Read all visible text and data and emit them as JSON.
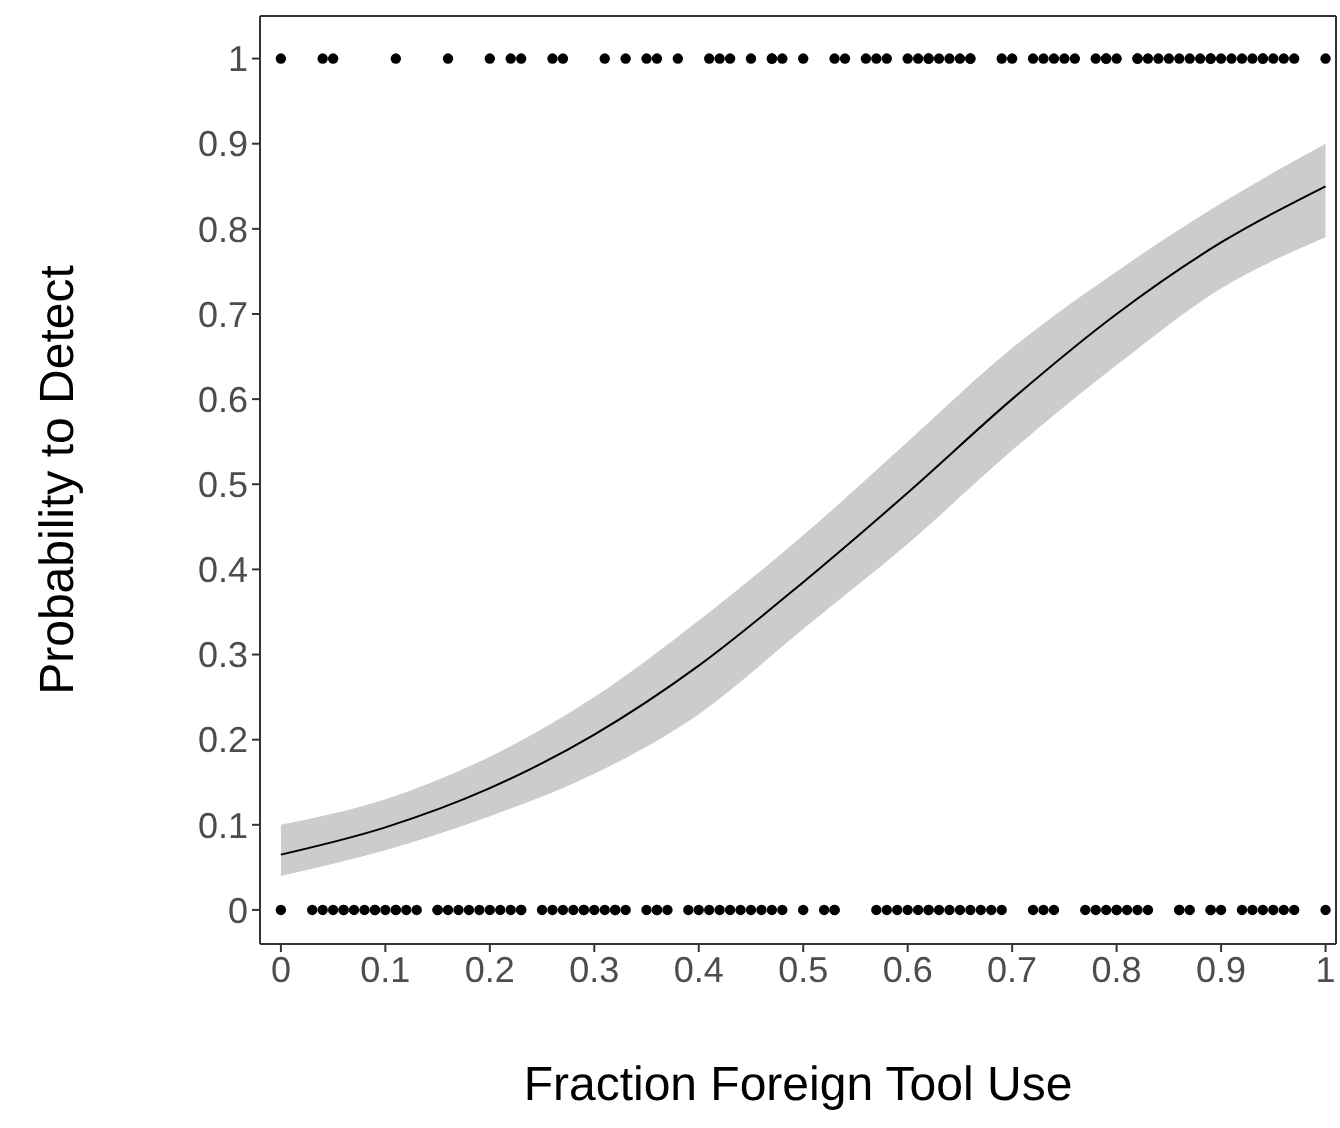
{
  "chart_data": {
    "type": "scatter",
    "xlabel": "Fraction Foreign Tool Use",
    "ylabel": "Probability to Detect",
    "xlim": [
      -0.02,
      1.01
    ],
    "ylim": [
      -0.04,
      1.05
    ],
    "xticks": [
      0,
      0.1,
      0.2,
      0.3,
      0.4,
      0.5,
      0.6,
      0.7,
      0.8,
      0.9,
      1
    ],
    "yticks": [
      0,
      0.1,
      0.2,
      0.3,
      0.4,
      0.5,
      0.6,
      0.7,
      0.8,
      0.9,
      1
    ],
    "grid": false,
    "legend": false,
    "series": [
      {
        "type": "scatter",
        "marker": "circle",
        "color": "#000000",
        "x": [
          0,
          0.04,
          0.05,
          0.11,
          0.16,
          0.2,
          0.22,
          0.23,
          0.26,
          0.27,
          0.31,
          0.33,
          0.35,
          0.36,
          0.38,
          0.41,
          0.42,
          0.43,
          0.45,
          0.47,
          0.47,
          0.48,
          0.5,
          0.53,
          0.54,
          0.56,
          0.57,
          0.58,
          0.6,
          0.61,
          0.62,
          0.62,
          0.63,
          0.64,
          0.65,
          0.66,
          0.66,
          0.69,
          0.7,
          0.72,
          0.73,
          0.74,
          0.75,
          0.76,
          0.78,
          0.79,
          0.79,
          0.8,
          0.82,
          0.82,
          0.83,
          0.84,
          0.85,
          0.86,
          0.87,
          0.88,
          0.89,
          0.89,
          0.9,
          0.91,
          0.92,
          0.93,
          0.94,
          0.94,
          0.95,
          0.96,
          0.97,
          1
        ],
        "values": [
          1,
          1,
          1,
          1,
          1,
          1,
          1,
          1,
          1,
          1,
          1,
          1,
          1,
          1,
          1,
          1,
          1,
          1,
          1,
          1,
          1,
          1,
          1,
          1,
          1,
          1,
          1,
          1,
          1,
          1,
          1,
          1,
          1,
          1,
          1,
          1,
          1,
          1,
          1,
          1,
          1,
          1,
          1,
          1,
          1,
          1,
          1,
          1,
          1,
          1,
          1,
          1,
          1,
          1,
          1,
          1,
          1,
          1,
          1,
          1,
          1,
          1,
          1,
          1,
          1,
          1,
          1,
          1
        ]
      },
      {
        "type": "scatter",
        "marker": "circle",
        "color": "#000000",
        "x": [
          0,
          0.03,
          0.04,
          0.05,
          0.06,
          0.06,
          0.07,
          0.08,
          0.09,
          0.09,
          0.1,
          0.11,
          0.11,
          0.12,
          0.13,
          0.15,
          0.15,
          0.16,
          0.17,
          0.18,
          0.19,
          0.2,
          0.21,
          0.22,
          0.23,
          0.23,
          0.25,
          0.26,
          0.27,
          0.28,
          0.29,
          0.29,
          0.3,
          0.31,
          0.32,
          0.32,
          0.33,
          0.35,
          0.36,
          0.36,
          0.37,
          0.39,
          0.4,
          0.41,
          0.42,
          0.43,
          0.44,
          0.45,
          0.46,
          0.47,
          0.48,
          0.5,
          0.52,
          0.53,
          0.53,
          0.57,
          0.58,
          0.59,
          0.6,
          0.61,
          0.62,
          0.62,
          0.63,
          0.64,
          0.65,
          0.66,
          0.67,
          0.68,
          0.69,
          0.72,
          0.73,
          0.74,
          0.77,
          0.78,
          0.79,
          0.8,
          0.8,
          0.81,
          0.82,
          0.83,
          0.86,
          0.86,
          0.87,
          0.89,
          0.89,
          0.9,
          0.92,
          0.93,
          0.94,
          0.95,
          0.96,
          0.97,
          1
        ],
        "values": [
          0,
          0,
          0,
          0,
          0,
          0,
          0,
          0,
          0,
          0,
          0,
          0,
          0,
          0,
          0,
          0,
          0,
          0,
          0,
          0,
          0,
          0,
          0,
          0,
          0,
          0,
          0,
          0,
          0,
          0,
          0,
          0,
          0,
          0,
          0,
          0,
          0,
          0,
          0,
          0,
          0,
          0,
          0,
          0,
          0,
          0,
          0,
          0,
          0,
          0,
          0,
          0,
          0,
          0,
          0,
          0,
          0,
          0,
          0,
          0,
          0,
          0,
          0,
          0,
          0,
          0,
          0,
          0,
          0,
          0,
          0,
          0,
          0,
          0,
          0,
          0,
          0,
          0,
          0,
          0,
          0,
          0,
          0,
          0,
          0,
          0,
          0,
          0,
          0,
          0,
          0,
          0,
          0
        ]
      },
      {
        "type": "line",
        "color": "#000000",
        "x": [
          0,
          0.1,
          0.2,
          0.3,
          0.4,
          0.5,
          0.6,
          0.7,
          0.8,
          0.9,
          1
        ],
        "values": [
          0.065,
          0.097,
          0.143,
          0.206,
          0.287,
          0.385,
          0.49,
          0.6,
          0.7,
          0.784,
          0.85
        ],
        "lower": [
          0.04,
          0.07,
          0.11,
          0.16,
          0.23,
          0.33,
          0.43,
          0.54,
          0.64,
          0.73,
          0.79
        ],
        "upper": [
          0.1,
          0.13,
          0.18,
          0.25,
          0.34,
          0.44,
          0.55,
          0.66,
          0.75,
          0.83,
          0.9
        ]
      }
    ]
  }
}
